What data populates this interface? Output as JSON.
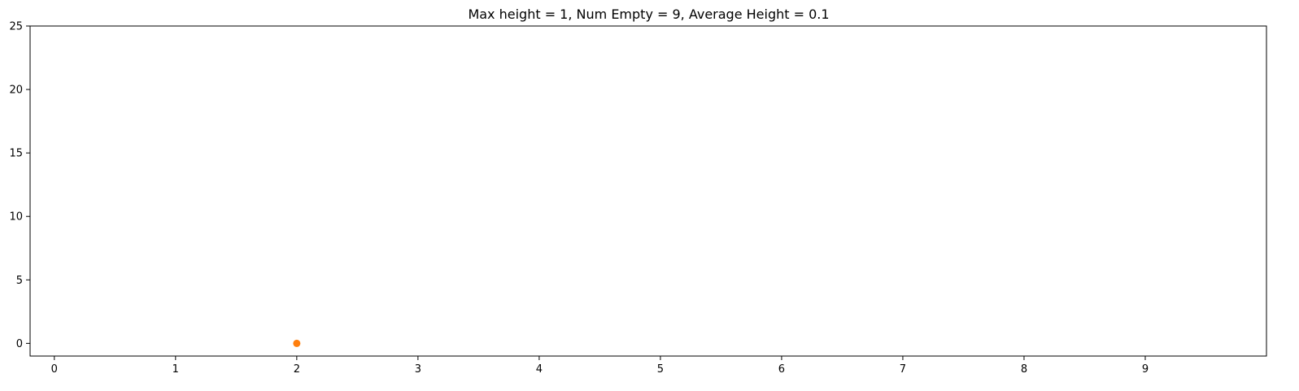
{
  "chart_data": {
    "type": "scatter",
    "title": "Max height = 1, Num Empty = 9, Average Height = 0.1",
    "xlabel": "",
    "ylabel": "",
    "xlim": [
      -0.2,
      10.0
    ],
    "ylim": [
      -1,
      25
    ],
    "xticks": [
      "0",
      "1",
      "2",
      "3",
      "4",
      "5",
      "6",
      "7",
      "8",
      "9"
    ],
    "yticks": [
      "0",
      "5",
      "10",
      "15",
      "20",
      "25"
    ],
    "grid": false,
    "series": [
      {
        "color": "#ff7f0e",
        "points": [
          {
            "x": 2,
            "y": 0
          }
        ]
      }
    ]
  }
}
